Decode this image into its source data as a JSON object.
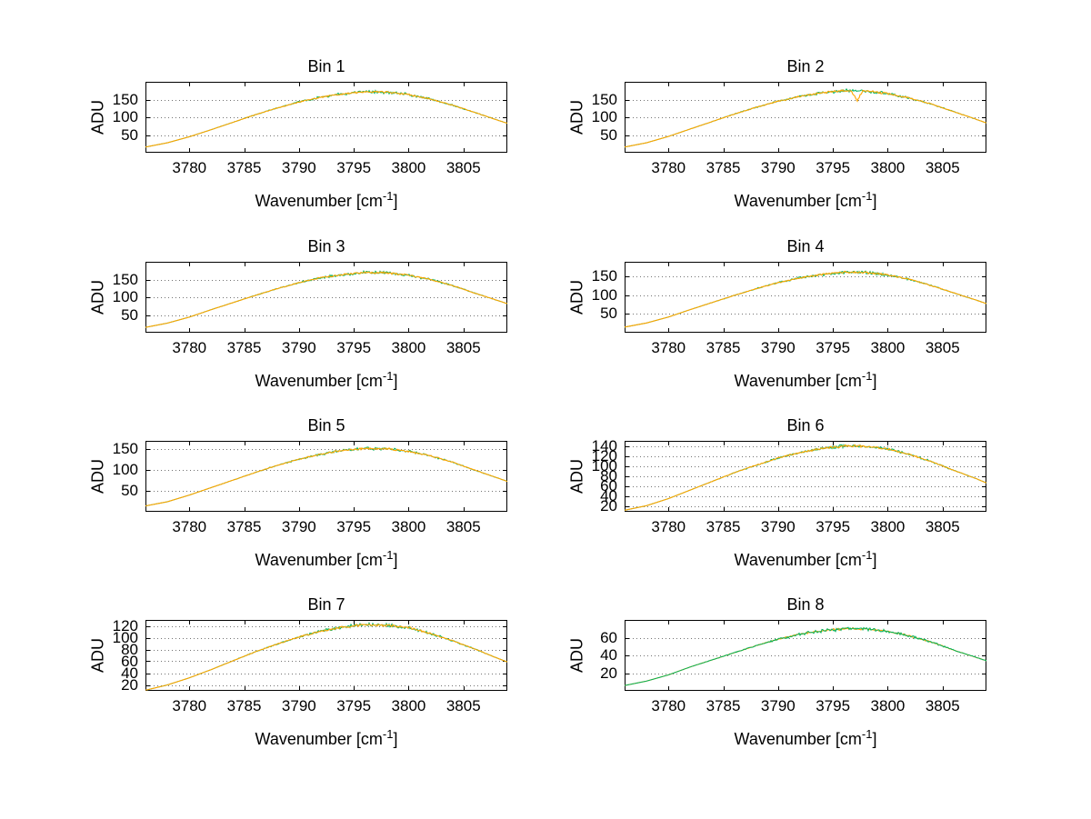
{
  "figure": {
    "background": "#ffffff",
    "text_color": "#000000"
  },
  "chart_data": {
    "type": "line",
    "layout": "4x2-grid",
    "common": {
      "x": [
        3776,
        3778,
        3780,
        3782,
        3784,
        3786,
        3788,
        3790,
        3792,
        3794,
        3796,
        3798,
        3800,
        3802,
        3804,
        3806,
        3808,
        3809
      ],
      "xlim": [
        3776,
        3809
      ],
      "x_ticks": [
        3780,
        3785,
        3790,
        3795,
        3800,
        3805
      ],
      "xlabel_prefix": "Wavenumber [cm",
      "xlabel_sup": "-1",
      "xlabel_suffix": "]",
      "ylabel": "ADU",
      "grid": "y-dotted",
      "series_colors": {
        "primary": "#ffa500",
        "secondary": "#00b25c"
      }
    },
    "plots": [
      {
        "title": "Bin 1",
        "ylim": [
          0,
          200
        ],
        "y_ticks": [
          50,
          100,
          150
        ],
        "values": [
          16,
          28,
          45,
          65,
          86,
          107,
          126,
          143,
          157,
          166,
          172,
          171,
          164,
          151,
          134,
          114,
          93,
          83
        ]
      },
      {
        "title": "Bin 2",
        "ylim": [
          0,
          200
        ],
        "y_ticks": [
          50,
          100,
          150
        ],
        "values": [
          16,
          28,
          46,
          67,
          88,
          109,
          128,
          145,
          159,
          169,
          175,
          174,
          167,
          154,
          137,
          116,
          95,
          84
        ],
        "spike": {
          "x": 3797.2,
          "depth": 28,
          "width": 0.5
        }
      },
      {
        "title": "Bin 3",
        "ylim": [
          0,
          200
        ],
        "y_ticks": [
          50,
          100,
          150
        ],
        "values": [
          15,
          27,
          44,
          65,
          85,
          105,
          124,
          141,
          155,
          164,
          170,
          169,
          162,
          150,
          133,
          112,
          92,
          82
        ]
      },
      {
        "title": "Bin 4",
        "ylim": [
          0,
          190
        ],
        "y_ticks": [
          50,
          100,
          150
        ],
        "values": [
          15,
          26,
          42,
          62,
          81,
          100,
          118,
          134,
          147,
          156,
          162,
          161,
          155,
          143,
          126,
          107,
          88,
          78
        ]
      },
      {
        "title": "Bin 5",
        "ylim": [
          0,
          170
        ],
        "y_ticks": [
          50,
          100,
          150
        ],
        "values": [
          14,
          24,
          40,
          58,
          76,
          94,
          111,
          126,
          138,
          147,
          152,
          151,
          145,
          134,
          119,
          100,
          82,
          73
        ]
      },
      {
        "title": "Bin 6",
        "ylim": [
          10,
          150
        ],
        "y_ticks": [
          20,
          40,
          60,
          80,
          100,
          120,
          140
        ],
        "values": [
          13,
          22,
          36,
          53,
          70,
          87,
          102,
          116,
          127,
          135,
          140,
          139,
          134,
          123,
          109,
          92,
          76,
          67
        ]
      },
      {
        "title": "Bin 7",
        "ylim": [
          10,
          130
        ],
        "y_ticks": [
          20,
          40,
          60,
          80,
          100,
          120
        ],
        "values": [
          11,
          20,
          32,
          46,
          61,
          76,
          89,
          101,
          111,
          118,
          122,
          121,
          117,
          107,
          95,
          81,
          66,
          59
        ]
      },
      {
        "title": "Bin 8",
        "ylim": [
          0,
          80
        ],
        "y_ticks": [
          20,
          40,
          60
        ],
        "values": [
          6,
          11,
          18,
          27,
          35,
          43,
          51,
          58,
          64,
          68,
          70,
          70,
          67,
          62,
          55,
          46,
          38,
          34
        ],
        "secondary_on_top": true
      }
    ]
  }
}
